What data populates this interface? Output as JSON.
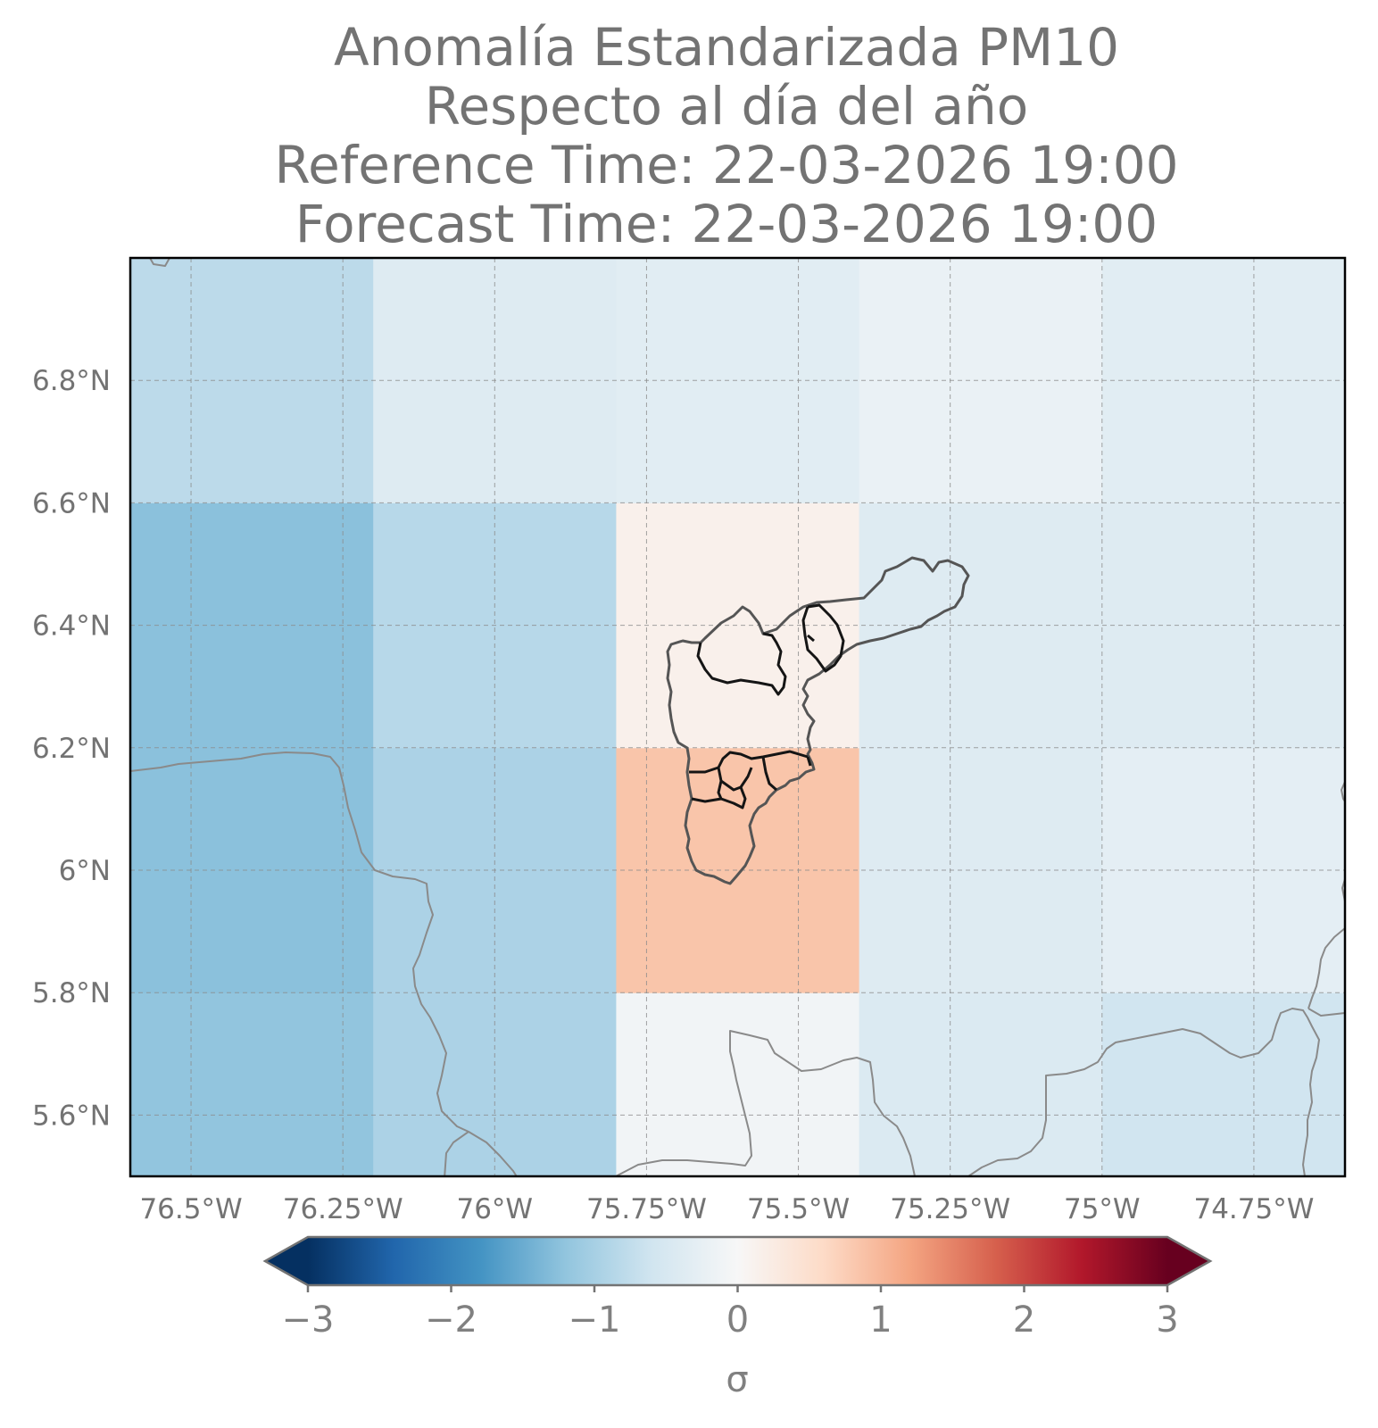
{
  "title": {
    "line1": "Anomalía Estandarizada PM10",
    "line2": "Respecto al día del año",
    "line3": "Reference Time: 22-03-2026 19:00",
    "line4": "Forecast Time: 22-03-2026 19:00"
  },
  "chart_data": {
    "type": "heatmap",
    "title": "Anomalía Estandarizada PM10 / Respecto al día del año",
    "xlabel": "",
    "ylabel": "",
    "xlim": [
      -76.6,
      -74.6
    ],
    "ylim": [
      5.5,
      7.0
    ],
    "x_ticks": [
      -76.5,
      -76.25,
      -76.0,
      -75.75,
      -75.5,
      -75.25,
      -75.0,
      -74.75
    ],
    "x_tick_labels": [
      "76.5°W",
      "76.25°W",
      "76°W",
      "75.75°W",
      "75.5°W",
      "75.25°W",
      "75°W",
      "74.75°W"
    ],
    "y_ticks": [
      5.6,
      5.8,
      6.0,
      6.2,
      6.4,
      6.6,
      6.8
    ],
    "y_tick_labels": [
      "5.6°N",
      "5.8°N",
      "6°N",
      "6.2°N",
      "6.4°N",
      "6.6°N",
      "6.8°N"
    ],
    "grid": true,
    "cell_lon_edges": [
      -76.6,
      -76.2,
      -75.8,
      -75.4,
      -75.0,
      -74.6
    ],
    "cell_lat_edges": [
      5.5,
      5.8,
      6.2,
      6.6,
      7.0
    ],
    "values": [
      [
        -1.2,
        -0.95,
        -0.1,
        -0.45,
        -0.6
      ],
      [
        -1.25,
        -0.95,
        0.85,
        -0.4,
        -0.3
      ],
      [
        -1.25,
        -0.85,
        0.15,
        -0.4,
        -0.4
      ],
      [
        -0.8,
        -0.4,
        -0.35,
        -0.2,
        -0.35
      ]
    ],
    "colormap": "RdBu_r",
    "vmin": -3,
    "vmax": 3,
    "extend": "both",
    "colorbar": {
      "ticks": [
        -3,
        -2,
        -1,
        0,
        1,
        2,
        3
      ],
      "tick_labels": [
        "−3",
        "−2",
        "−1",
        "0",
        "1",
        "2",
        "3"
      ],
      "label": "σ",
      "orientation": "horizontal",
      "location": "bottom"
    },
    "colormap_stops": [
      "#053061",
      "#2166ac",
      "#4393c3",
      "#92c5de",
      "#d1e5f0",
      "#f7f7f7",
      "#fddbc7",
      "#f4a582",
      "#d6604d",
      "#b2182b",
      "#67001f"
    ]
  },
  "colors": {
    "text": "#737373",
    "frame": "#000000",
    "grid": "#8c8c8c",
    "coastline": "#8a8a8a",
    "municipality_outer": "#555555",
    "municipality_inner": "#151515"
  }
}
